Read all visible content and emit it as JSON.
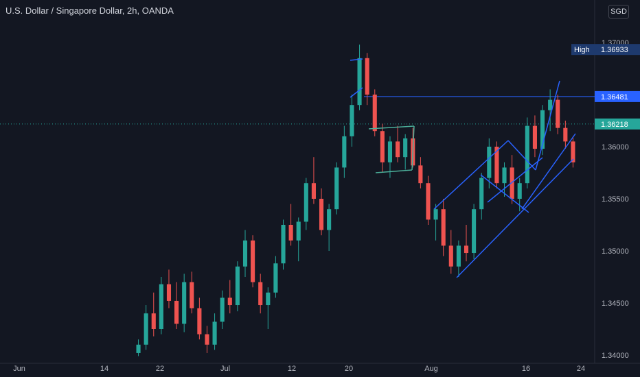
{
  "header": {
    "title": "U.S. Dollar / Singapore Dollar, 2h, OANDA",
    "currency_button": "SGD"
  },
  "colors": {
    "background": "#131722",
    "up_candle": "#26a69a",
    "down_candle": "#ef5350",
    "channel_lines": "#2962ff",
    "flag_lines": "#4caf9a",
    "current_price_tag": "#26a69a",
    "level_tag": "#2962ff",
    "high_tag": "#1e3a6e"
  },
  "chart_data": {
    "type": "candlestick",
    "x_tick_labels": [
      "Jun",
      "14",
      "22",
      "Jul",
      "12",
      "20",
      "Aug",
      "16",
      "24"
    ],
    "y_tick_labels": [
      "1.37000",
      "1.36500",
      "1.36000",
      "1.35500",
      "1.35000",
      "1.34500",
      "1.34000"
    ],
    "ylim": [
      1.3398,
      1.3715
    ],
    "price_tags": {
      "high_label": "High",
      "high_value": "1.36933",
      "level_value": "1.36481",
      "current_value": "1.36218"
    },
    "grid": false,
    "series": [
      {
        "values": [
          {
            "o": 1.3402,
            "h": 1.3415,
            "l": 1.3399,
            "c": 1.341
          },
          {
            "o": 1.341,
            "h": 1.3448,
            "l": 1.3405,
            "c": 1.344
          },
          {
            "o": 1.344,
            "h": 1.346,
            "l": 1.3418,
            "c": 1.3425
          },
          {
            "o": 1.3425,
            "h": 1.3475,
            "l": 1.342,
            "c": 1.3468
          },
          {
            "o": 1.3468,
            "h": 1.3482,
            "l": 1.3445,
            "c": 1.3452
          },
          {
            "o": 1.3452,
            "h": 1.347,
            "l": 1.3425,
            "c": 1.343
          },
          {
            "o": 1.343,
            "h": 1.3478,
            "l": 1.3422,
            "c": 1.347
          },
          {
            "o": 1.347,
            "h": 1.348,
            "l": 1.344,
            "c": 1.3445
          },
          {
            "o": 1.3445,
            "h": 1.3455,
            "l": 1.3415,
            "c": 1.342
          },
          {
            "o": 1.342,
            "h": 1.3428,
            "l": 1.3402,
            "c": 1.341
          },
          {
            "o": 1.341,
            "h": 1.344,
            "l": 1.3405,
            "c": 1.3432
          },
          {
            "o": 1.3432,
            "h": 1.3462,
            "l": 1.3425,
            "c": 1.3455
          },
          {
            "o": 1.3455,
            "h": 1.3472,
            "l": 1.344,
            "c": 1.3448
          },
          {
            "o": 1.3448,
            "h": 1.349,
            "l": 1.3442,
            "c": 1.3485
          },
          {
            "o": 1.3485,
            "h": 1.352,
            "l": 1.3475,
            "c": 1.351
          },
          {
            "o": 1.351,
            "h": 1.3515,
            "l": 1.3465,
            "c": 1.347
          },
          {
            "o": 1.347,
            "h": 1.3478,
            "l": 1.344,
            "c": 1.3448
          },
          {
            "o": 1.3448,
            "h": 1.3465,
            "l": 1.3425,
            "c": 1.346
          },
          {
            "o": 1.346,
            "h": 1.3495,
            "l": 1.3455,
            "c": 1.3488
          },
          {
            "o": 1.3488,
            "h": 1.353,
            "l": 1.3482,
            "c": 1.3525
          },
          {
            "o": 1.3525,
            "h": 1.3545,
            "l": 1.3505,
            "c": 1.351
          },
          {
            "o": 1.351,
            "h": 1.3532,
            "l": 1.349,
            "c": 1.3528
          },
          {
            "o": 1.3528,
            "h": 1.357,
            "l": 1.352,
            "c": 1.3565
          },
          {
            "o": 1.3565,
            "h": 1.359,
            "l": 1.3545,
            "c": 1.355
          },
          {
            "o": 1.355,
            "h": 1.356,
            "l": 1.3515,
            "c": 1.352
          },
          {
            "o": 1.352,
            "h": 1.3545,
            "l": 1.35,
            "c": 1.354
          },
          {
            "o": 1.354,
            "h": 1.3585,
            "l": 1.3535,
            "c": 1.358
          },
          {
            "o": 1.358,
            "h": 1.362,
            "l": 1.357,
            "c": 1.361
          },
          {
            "o": 1.361,
            "h": 1.365,
            "l": 1.36,
            "c": 1.364
          },
          {
            "o": 1.364,
            "h": 1.3698,
            "l": 1.3635,
            "c": 1.3685
          },
          {
            "o": 1.3685,
            "h": 1.369,
            "l": 1.364,
            "c": 1.365
          },
          {
            "o": 1.365,
            "h": 1.3655,
            "l": 1.361,
            "c": 1.3615
          },
          {
            "o": 1.3615,
            "h": 1.3622,
            "l": 1.3575,
            "c": 1.3585
          },
          {
            "o": 1.3585,
            "h": 1.361,
            "l": 1.357,
            "c": 1.3605
          },
          {
            "o": 1.3605,
            "h": 1.362,
            "l": 1.3585,
            "c": 1.359
          },
          {
            "o": 1.359,
            "h": 1.3612,
            "l": 1.3578,
            "c": 1.3608
          },
          {
            "o": 1.3608,
            "h": 1.3618,
            "l": 1.358,
            "c": 1.3582
          },
          {
            "o": 1.3582,
            "h": 1.359,
            "l": 1.356,
            "c": 1.3565
          },
          {
            "o": 1.3565,
            "h": 1.3572,
            "l": 1.3525,
            "c": 1.353
          },
          {
            "o": 1.353,
            "h": 1.3545,
            "l": 1.351,
            "c": 1.354
          },
          {
            "o": 1.354,
            "h": 1.355,
            "l": 1.3495,
            "c": 1.3505
          },
          {
            "o": 1.3505,
            "h": 1.352,
            "l": 1.3478,
            "c": 1.3485
          },
          {
            "o": 1.3485,
            "h": 1.351,
            "l": 1.3475,
            "c": 1.3505
          },
          {
            "o": 1.3505,
            "h": 1.3525,
            "l": 1.349,
            "c": 1.3498
          },
          {
            "o": 1.3498,
            "h": 1.3545,
            "l": 1.3492,
            "c": 1.354
          },
          {
            "o": 1.354,
            "h": 1.3575,
            "l": 1.353,
            "c": 1.357
          },
          {
            "o": 1.357,
            "h": 1.3608,
            "l": 1.356,
            "c": 1.36
          },
          {
            "o": 1.36,
            "h": 1.3605,
            "l": 1.356,
            "c": 1.3565
          },
          {
            "o": 1.3565,
            "h": 1.3585,
            "l": 1.3552,
            "c": 1.358
          },
          {
            "o": 1.358,
            "h": 1.3592,
            "l": 1.3545,
            "c": 1.355
          },
          {
            "o": 1.355,
            "h": 1.357,
            "l": 1.3538,
            "c": 1.3565
          },
          {
            "o": 1.3565,
            "h": 1.3628,
            "l": 1.356,
            "c": 1.362
          },
          {
            "o": 1.362,
            "h": 1.363,
            "l": 1.359,
            "c": 1.3598
          },
          {
            "o": 1.3598,
            "h": 1.364,
            "l": 1.3592,
            "c": 1.3635
          },
          {
            "o": 1.3635,
            "h": 1.3655,
            "l": 1.3615,
            "c": 1.3645
          },
          {
            "o": 1.3645,
            "h": 1.365,
            "l": 1.3612,
            "c": 1.3618
          },
          {
            "o": 1.3618,
            "h": 1.3625,
            "l": 1.3598,
            "c": 1.3605
          },
          {
            "o": 1.3605,
            "h": 1.361,
            "l": 1.358,
            "c": 1.3585
          }
        ]
      }
    ]
  }
}
